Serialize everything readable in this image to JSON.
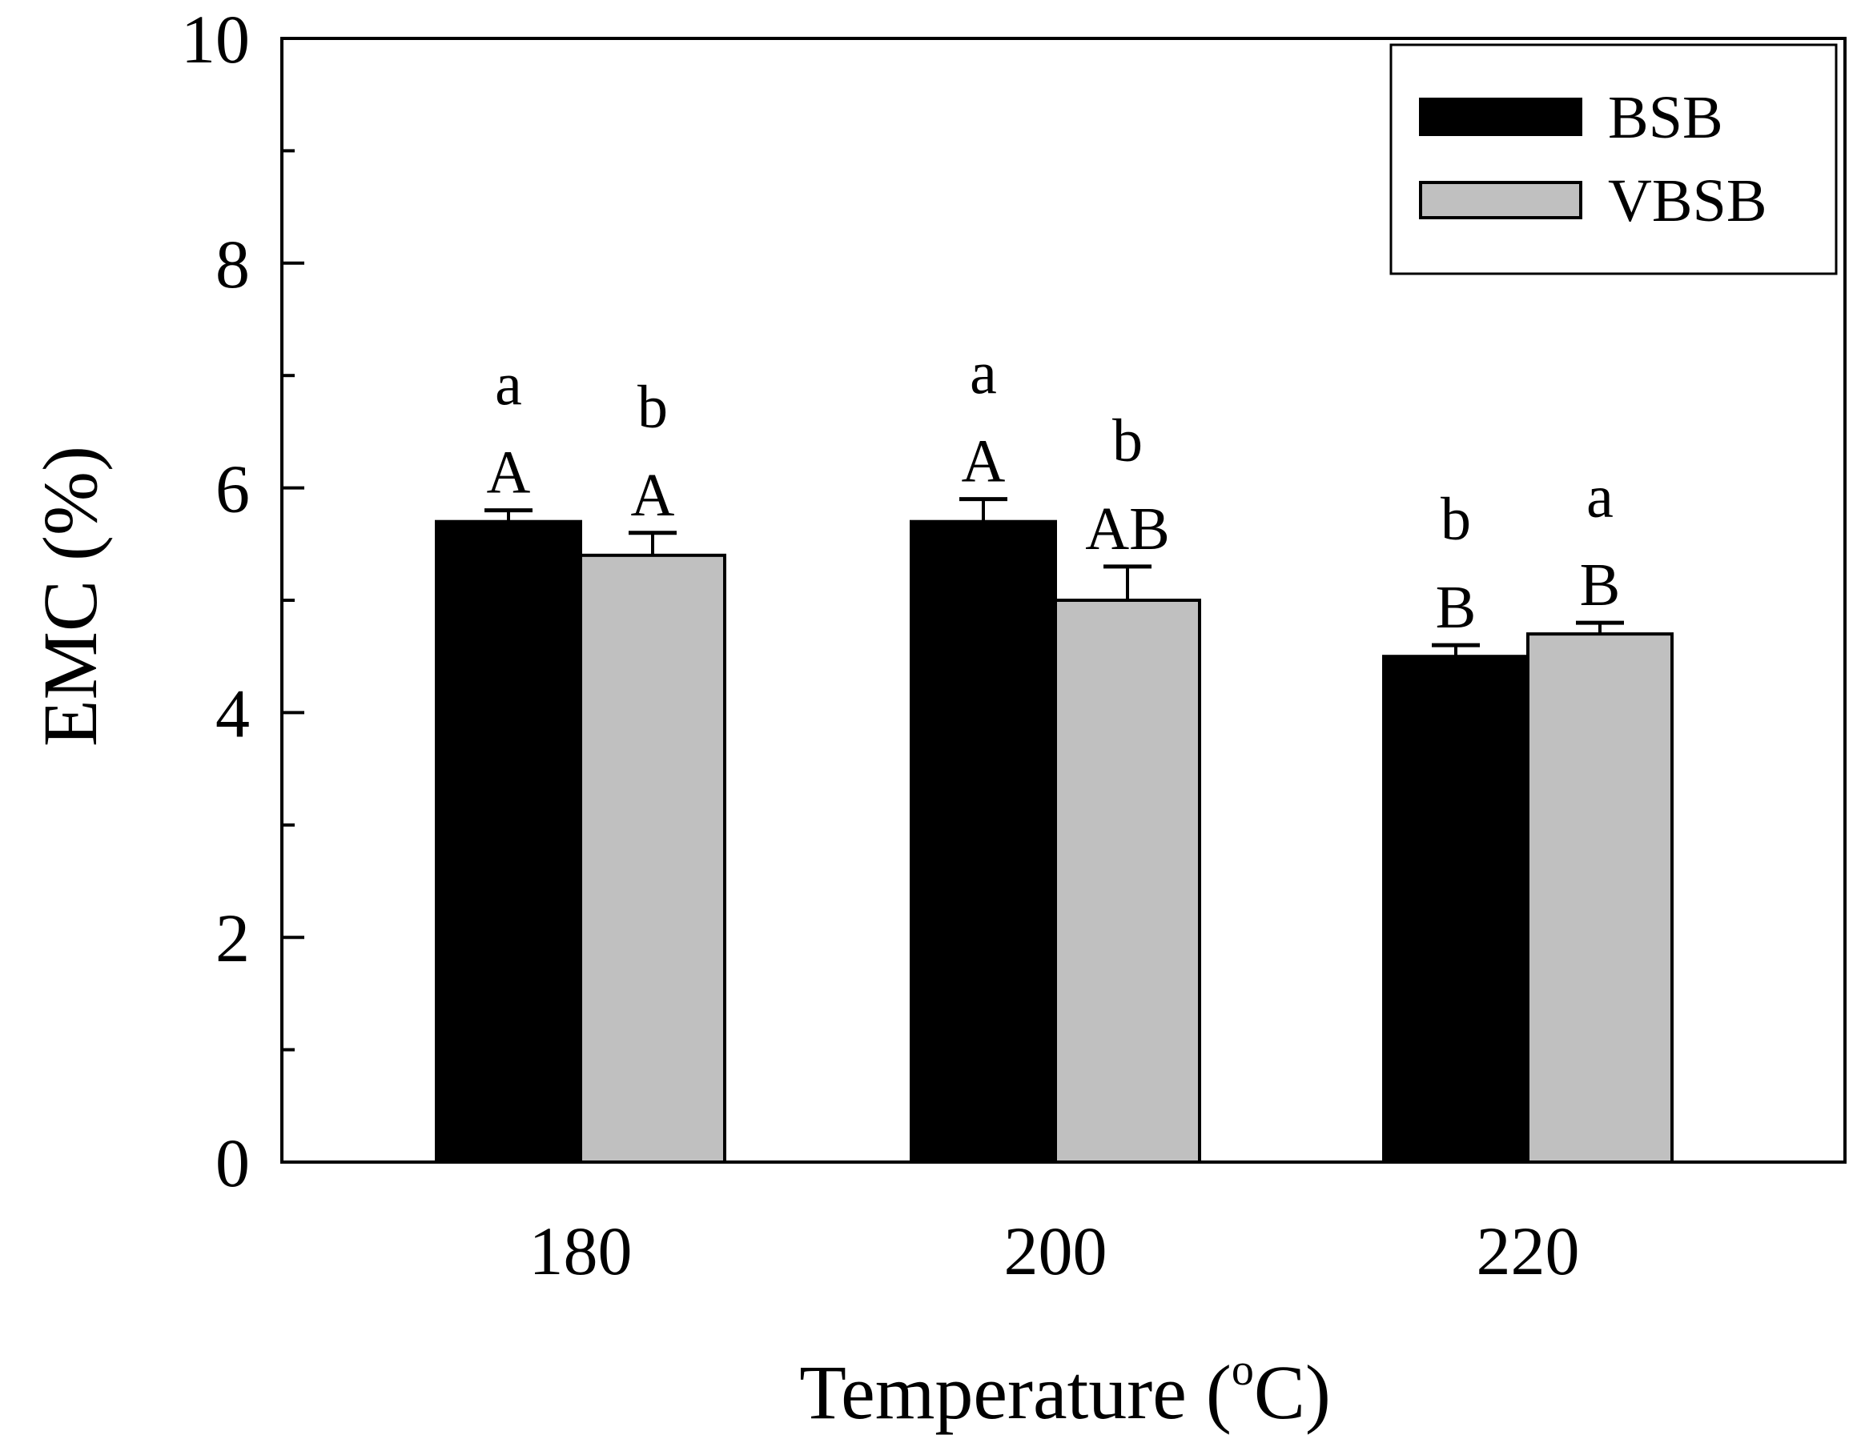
{
  "chart_data": {
    "type": "bar",
    "title": "",
    "xlabel": "Temperature (",
    "xlabel_superscript": "o",
    "xlabel_suffix": "C)",
    "ylabel": "EMC (%)",
    "categories": [
      "180",
      "200",
      "220"
    ],
    "ylim": [
      0,
      10
    ],
    "yticks": [
      0,
      2,
      4,
      6,
      8,
      10
    ],
    "legend_position": "top-right",
    "series": [
      {
        "name": "BSB",
        "color": "#000000",
        "values": [
          5.7,
          5.7,
          4.5
        ],
        "errors": [
          0.1,
          0.2,
          0.1
        ],
        "upper_labels": [
          "a",
          "a",
          "b"
        ],
        "lower_labels": [
          "A",
          "A",
          "B"
        ]
      },
      {
        "name": "VBSB",
        "color": "#c0c0c0",
        "values": [
          5.4,
          5.0,
          4.7
        ],
        "errors": [
          0.2,
          0.3,
          0.1
        ],
        "upper_labels": [
          "b",
          "b",
          "a"
        ],
        "lower_labels": [
          "A",
          "AB",
          "B"
        ]
      }
    ]
  }
}
